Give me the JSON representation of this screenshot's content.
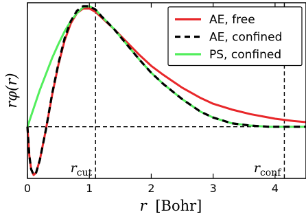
{
  "chart_data": {
    "type": "line",
    "xlabel": {
      "var": "r",
      "unit": "[Bohr]"
    },
    "ylabel": {
      "text": "rφ(r)"
    },
    "xlim": [
      0,
      4.5
    ],
    "ylim": [
      -0.45,
      1.08
    ],
    "x_ticks": [
      0,
      1,
      2,
      3,
      4
    ],
    "y_ticks_labeled": false,
    "grid": false,
    "legend_position": "top-right",
    "reference_lines": {
      "horizontal_y": 0,
      "vertical": [
        {
          "x": 1.1,
          "label_main": "r",
          "label_sub": "cut",
          "label_side": "left"
        },
        {
          "x": 4.15,
          "label_main": "r",
          "label_sub": "conf",
          "label_side": "left"
        }
      ]
    },
    "series": [
      {
        "name": "AE, free",
        "color": "#e8272a",
        "style": "solid",
        "x": [
          0,
          0.03,
          0.06,
          0.1,
          0.14,
          0.2,
          0.3,
          0.4,
          0.5,
          0.6,
          0.7,
          0.8,
          0.9,
          1.0,
          1.1,
          1.2,
          1.4,
          1.6,
          1.8,
          2.0,
          2.2,
          2.5,
          2.8,
          3.0,
          3.3,
          3.6,
          4.0,
          4.3,
          4.5
        ],
        "y": [
          0,
          -0.25,
          -0.37,
          -0.42,
          -0.4,
          -0.29,
          -0.02,
          0.28,
          0.54,
          0.75,
          0.9,
          0.99,
          1.03,
          1.03,
          1.0,
          0.95,
          0.85,
          0.74,
          0.63,
          0.53,
          0.45,
          0.34,
          0.25,
          0.2,
          0.15,
          0.11,
          0.07,
          0.05,
          0.04
        ]
      },
      {
        "name": "AE, confined",
        "color": "#000000",
        "style": "dashed",
        "x": [
          0,
          0.03,
          0.06,
          0.1,
          0.14,
          0.2,
          0.3,
          0.4,
          0.5,
          0.6,
          0.7,
          0.8,
          0.9,
          1.0,
          1.1,
          1.2,
          1.4,
          1.6,
          1.8,
          2.0,
          2.2,
          2.5,
          2.8,
          3.0,
          3.3,
          3.6,
          3.9,
          4.1,
          4.3,
          4.5
        ],
        "y": [
          0,
          -0.25,
          -0.37,
          -0.42,
          -0.4,
          -0.29,
          -0.02,
          0.29,
          0.55,
          0.77,
          0.92,
          1.01,
          1.05,
          1.05,
          1.02,
          0.96,
          0.85,
          0.72,
          0.59,
          0.47,
          0.37,
          0.24,
          0.13,
          0.08,
          0.03,
          0.01,
          0.0,
          0.0,
          0.0,
          0.0
        ]
      },
      {
        "name": "PS, confined",
        "color": "#52ee5c",
        "style": "solid",
        "x": [
          0,
          0.1,
          0.2,
          0.3,
          0.4,
          0.5,
          0.6,
          0.7,
          0.8,
          0.9,
          1.0,
          1.1,
          1.2,
          1.4,
          1.6,
          1.8,
          2.0,
          2.2,
          2.5,
          2.8,
          3.0,
          3.3,
          3.6,
          3.9,
          4.1,
          4.3,
          4.5
        ],
        "y": [
          0,
          0.16,
          0.32,
          0.46,
          0.6,
          0.72,
          0.83,
          0.92,
          0.99,
          1.04,
          1.05,
          1.02,
          0.96,
          0.85,
          0.72,
          0.59,
          0.47,
          0.37,
          0.24,
          0.13,
          0.08,
          0.03,
          0.01,
          0.0,
          0.0,
          0.0,
          0.0
        ]
      }
    ]
  }
}
